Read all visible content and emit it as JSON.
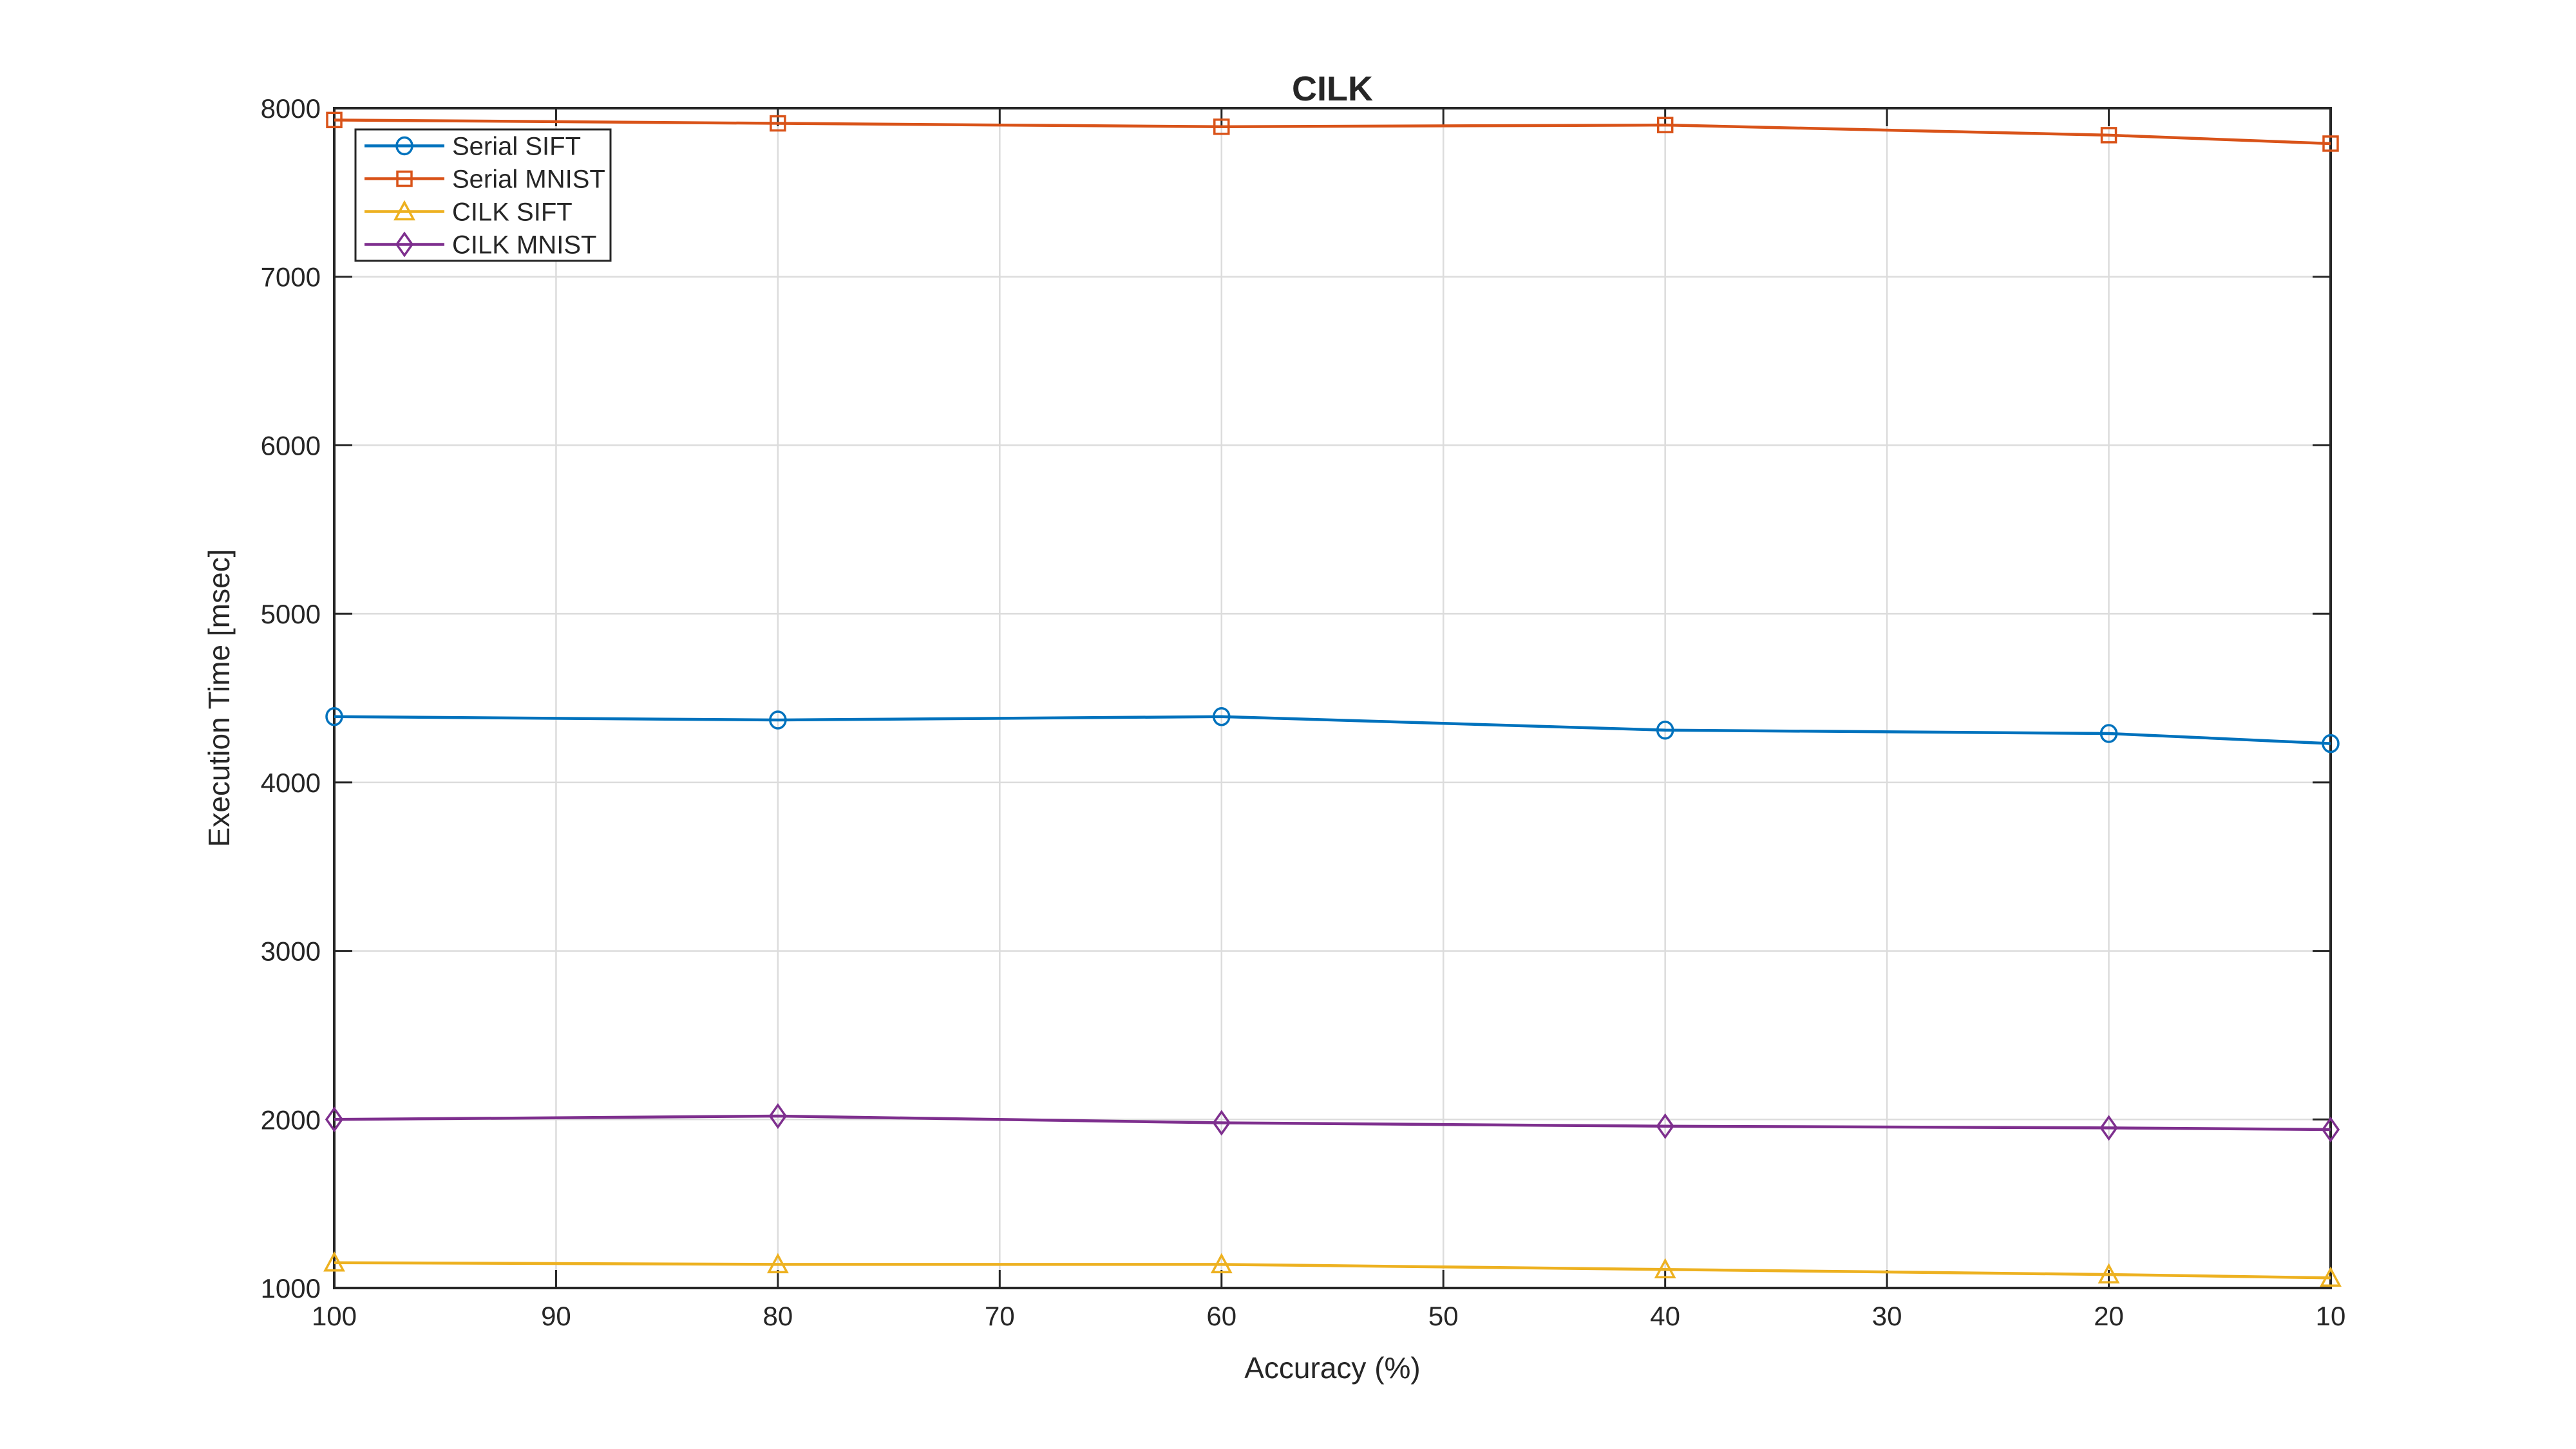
{
  "chart_data": {
    "type": "line",
    "title": "CILK",
    "xlabel": "Accuracy (%)",
    "ylabel": "Execution Time [msec]",
    "x": [
      100,
      80,
      60,
      40,
      20,
      10
    ],
    "x_ticks": [
      100,
      90,
      80,
      70,
      60,
      50,
      40,
      30,
      20,
      10
    ],
    "y_ticks": [
      1000,
      2000,
      3000,
      4000,
      5000,
      6000,
      7000,
      8000
    ],
    "xlim": [
      100,
      10
    ],
    "ylim": [
      1000,
      8000
    ],
    "x_direction": "reversed",
    "grid": true,
    "box": true,
    "legend_position": "top-left",
    "axis_color": "#262626",
    "grid_color": "#dcdcdc",
    "background_color": "#ffffff",
    "series": [
      {
        "name": "Serial SIFT",
        "marker": "circle",
        "color": "#0072BD",
        "values": [
          4390,
          4370,
          4390,
          4310,
          4290,
          4230
        ]
      },
      {
        "name": "Serial MNIST",
        "marker": "square",
        "color": "#D95319",
        "values": [
          7930,
          7910,
          7890,
          7900,
          7840,
          7790
        ]
      },
      {
        "name": "CILK SIFT",
        "marker": "triangle",
        "color": "#EDB120",
        "values": [
          1150,
          1140,
          1140,
          1110,
          1080,
          1060
        ]
      },
      {
        "name": "CILK MNIST",
        "marker": "diamond",
        "color": "#7E2F8E",
        "values": [
          2000,
          2020,
          1980,
          1960,
          1950,
          1940
        ]
      }
    ]
  }
}
